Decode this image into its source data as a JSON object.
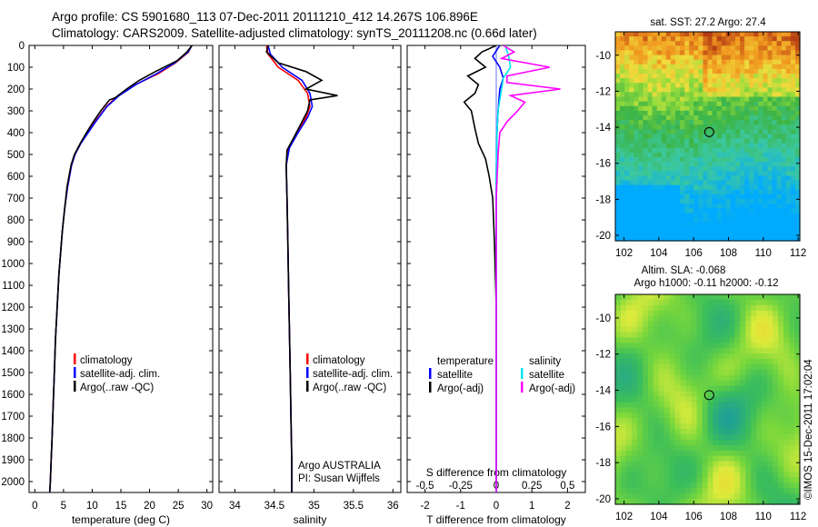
{
  "header": {
    "line1": "Argo profile: CS 5901680_113 07-Dec-2011 20111210_412 14.267S 106.896E",
    "line2": "Climatology: CARS2009. Satellite-adjusted climatology: synTS_20111208.nc (0.66d later)"
  },
  "map_sst": {
    "title": "sat. SST: 27.2 Argo: 27.4"
  },
  "map_sla": {
    "title1": "Altim. SLA: -0.068",
    "title2": "Argo h1000: -0.11 h2000: -0.12"
  },
  "credit": "©IMOS 15-Dec-2011 17:02:04",
  "colors": {
    "climatology": "#ff0000",
    "satellite": "#0000ff",
    "argo": "#000000",
    "sal_satellite": "#00e5ee",
    "sal_argo": "#ff00ff"
  },
  "chart_data": [
    {
      "type": "line",
      "xlabel": "temperature (deg C)",
      "ylim": [
        2050,
        0
      ],
      "xlim": [
        -1,
        31
      ],
      "xticks": [
        0,
        5,
        10,
        15,
        20,
        25,
        30
      ],
      "yticks": [
        0,
        100,
        200,
        300,
        400,
        500,
        600,
        700,
        800,
        900,
        1000,
        1100,
        1200,
        1300,
        1400,
        1500,
        1600,
        1700,
        1800,
        1900,
        2000
      ],
      "legend": [
        "climatology",
        "satellite-adj. clim.",
        "Argo(..raw -QC)"
      ],
      "series": [
        {
          "name": "climatology",
          "x": [
            27.3,
            26.8,
            24.5,
            21.5,
            17.5,
            14.5,
            12.5,
            10.5,
            9.2,
            8.0,
            7.0,
            6.4,
            5.7,
            5.2,
            4.8,
            4.5,
            4.2,
            3.9,
            3.6,
            3.4,
            3.2,
            3.0,
            2.85,
            2.7,
            2.6
          ],
          "y": [
            0,
            30,
            80,
            130,
            180,
            230,
            280,
            350,
            400,
            450,
            500,
            550,
            650,
            750,
            850,
            950,
            1050,
            1200,
            1350,
            1500,
            1650,
            1800,
            1900,
            2000,
            2050
          ]
        },
        {
          "name": "satellite-adj. clim.",
          "x": [
            27.4,
            26.7,
            24.4,
            21.2,
            17.6,
            14.7,
            12.6,
            10.6,
            9.3,
            8.0,
            7.0,
            6.4,
            5.7,
            5.2,
            4.8,
            4.5,
            4.2,
            3.9,
            3.6,
            3.4,
            3.2,
            3.0,
            2.85,
            2.7,
            2.6
          ],
          "y": [
            0,
            30,
            80,
            130,
            180,
            230,
            280,
            350,
            400,
            450,
            500,
            550,
            650,
            750,
            850,
            950,
            1050,
            1200,
            1350,
            1500,
            1650,
            1800,
            1900,
            2000,
            2050
          ]
        },
        {
          "name": "Argo(..raw -QC)",
          "x": [
            27.4,
            26.5,
            24.8,
            21.0,
            18.2,
            16.0,
            14.0,
            13.0,
            11.5,
            10.2,
            9.0,
            7.9,
            6.9,
            6.3,
            5.6,
            5.2,
            4.8,
            4.5,
            4.2,
            3.9,
            3.6,
            3.4,
            3.2,
            3.0,
            2.85,
            2.7,
            2.6
          ],
          "y": [
            0,
            30,
            70,
            120,
            160,
            200,
            240,
            250,
            300,
            350,
            400,
            450,
            500,
            550,
            650,
            750,
            850,
            950,
            1050,
            1200,
            1350,
            1500,
            1650,
            1800,
            1900,
            2000,
            2050
          ]
        }
      ]
    },
    {
      "type": "line",
      "xlabel": "salinity",
      "ylim": [
        2050,
        0
      ],
      "xlim": [
        33.8,
        36.1
      ],
      "xticks": [
        34,
        34.5,
        35,
        35.5,
        36
      ],
      "xticklabels": [
        "34",
        "34.5",
        "35",
        "35.5",
        "36"
      ],
      "legend": [
        "climatology",
        "satellite-adj. clim.",
        "Argo(..raw -QC)"
      ],
      "annotation": [
        "Argo AUSTRALIA",
        "PI: Susan Wijffels"
      ],
      "series": [
        {
          "name": "climatology",
          "x": [
            34.4,
            34.42,
            34.55,
            34.8,
            34.92,
            34.95,
            34.9,
            34.78,
            34.68,
            34.65,
            34.66,
            34.67,
            34.68,
            34.69,
            34.7,
            34.71,
            34.72,
            34.72
          ],
          "y": [
            0,
            40,
            100,
            160,
            220,
            280,
            330,
            400,
            470,
            550,
            700,
            900,
            1100,
            1300,
            1500,
            1700,
            1900,
            2050
          ]
        },
        {
          "name": "satellite-adj. clim.",
          "x": [
            34.42,
            34.45,
            34.6,
            34.85,
            34.95,
            34.98,
            34.92,
            34.8,
            34.69,
            34.65,
            34.66,
            34.67,
            34.68,
            34.69,
            34.7,
            34.71,
            34.72,
            34.72
          ],
          "y": [
            0,
            40,
            100,
            160,
            220,
            280,
            330,
            400,
            470,
            550,
            700,
            900,
            1100,
            1300,
            1500,
            1700,
            1900,
            2050
          ]
        },
        {
          "name": "Argo(..raw -QC)",
          "x": [
            34.42,
            34.4,
            34.55,
            34.9,
            35.1,
            34.9,
            35.3,
            34.95,
            34.92,
            34.85,
            34.75,
            34.66,
            34.65,
            34.66,
            34.67,
            34.68,
            34.69,
            34.7,
            34.71,
            34.72,
            34.72
          ],
          "y": [
            0,
            30,
            80,
            120,
            160,
            200,
            230,
            250,
            300,
            350,
            420,
            480,
            550,
            700,
            900,
            1100,
            1300,
            1500,
            1700,
            1900,
            2050
          ]
        }
      ]
    },
    {
      "type": "line",
      "xlabel": "T difference from climatology",
      "xlabel_top": "S difference from climatology",
      "ylim": [
        2050,
        0
      ],
      "xlim": [
        -2.5,
        2.5
      ],
      "xticks": [
        -2,
        -1,
        0,
        1,
        2
      ],
      "xticks_top": [
        -0.5,
        -0.25,
        0,
        0.25,
        0.5
      ],
      "legend_title_left": "temperature",
      "legend_title_right": "salinity",
      "legend_left": [
        "satellite",
        "Argo(-adj)"
      ],
      "legend_right": [
        "satellite",
        "Argo(-adj)"
      ],
      "series": [
        {
          "name": "temperature satellite",
          "x": [
            0.1,
            -0.1,
            0.1,
            0.2,
            0.1,
            0.05,
            0.02,
            0.0,
            0.0,
            0.0,
            0.0
          ],
          "y": [
            0,
            50,
            100,
            150,
            200,
            300,
            400,
            600,
            1000,
            1500,
            2050
          ]
        },
        {
          "name": "temperature Argo(-adj)",
          "x": [
            0.0,
            -0.4,
            -0.6,
            -0.3,
            -0.8,
            -0.5,
            -0.6,
            -0.9,
            -0.7,
            -0.6,
            -0.5,
            -0.3,
            -0.2,
            -0.1,
            -0.05,
            0.0,
            0.0,
            0.0
          ],
          "y": [
            0,
            30,
            60,
            100,
            140,
            180,
            220,
            260,
            300,
            380,
            450,
            520,
            600,
            700,
            900,
            1200,
            1600,
            2050
          ]
        },
        {
          "name": "salinity satellite",
          "x": [
            0.25,
            0.35,
            0.4,
            0.2,
            0.15,
            0.1,
            0.05,
            0.02,
            0.0,
            0.0,
            0.0
          ],
          "y": [
            0,
            50,
            100,
            150,
            200,
            250,
            300,
            400,
            600,
            1000,
            2050
          ]
        },
        {
          "name": "salinity Argo(-adj)",
          "x": [
            0.2,
            0.5,
            0.15,
            1.5,
            0.3,
            0.3,
            1.8,
            0.4,
            0.8,
            0.6,
            0.3,
            0.1,
            0.05,
            0.0,
            0.0
          ],
          "y": [
            0,
            30,
            60,
            100,
            140,
            170,
            200,
            230,
            260,
            300,
            350,
            400,
            500,
            700,
            2050
          ]
        }
      ]
    },
    {
      "type": "heatmap",
      "title": "sat. SST: 27.2 Argo: 27.4",
      "xlim": [
        101.5,
        112.1
      ],
      "ylim": [
        -20.3,
        -8.7
      ],
      "xticks": [
        102,
        104,
        106,
        108,
        110,
        112
      ],
      "yticks": [
        -10,
        -12,
        -14,
        -16,
        -18,
        -20
      ],
      "argo_position": [
        106.896,
        -14.267
      ]
    },
    {
      "type": "heatmap",
      "title": "Altim. SLA: -0.068",
      "xlim": [
        101.5,
        112.1
      ],
      "ylim": [
        -20.3,
        -8.7
      ],
      "xticks": [
        102,
        104,
        106,
        108,
        110,
        112
      ],
      "yticks": [
        -10,
        -12,
        -14,
        -16,
        -18,
        -20
      ],
      "argo_position": [
        106.896,
        -14.267
      ]
    }
  ]
}
